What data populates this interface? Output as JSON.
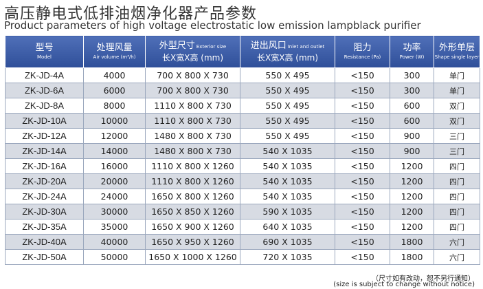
{
  "title": {
    "cn": "高压静电式低排油烟净化器产品参数",
    "en": "Product parameters of high voltage electrostatic low emission lampblack purifier"
  },
  "table": {
    "headers": [
      {
        "cn": "型号",
        "en": "Model"
      },
      {
        "cn": "处理风量",
        "en": "Air volume (m³/h)"
      },
      {
        "cn": "外型尺寸",
        "en": "Exterior size",
        "line2": "长X宽X高 (mm)"
      },
      {
        "cn": "进出风口",
        "en": "Inlet and outlet",
        "line2": "长X宽X高 (mm)"
      },
      {
        "cn": "阻力",
        "en": "Resistance (Pa)"
      },
      {
        "cn": "功率",
        "en": "Power (W)"
      },
      {
        "cn": "外形单层",
        "en": "Shape single layer"
      }
    ],
    "rows": [
      {
        "model": "ZK-JD-4A",
        "air_volume": "4000",
        "exterior": "700 X 800 X 730",
        "inlet": "550 X 495",
        "resistance": "<150",
        "power": "300",
        "shape": "单门"
      },
      {
        "model": "ZK-JD-6A",
        "air_volume": "6000",
        "exterior": "700 X 800 X 730",
        "inlet": "550 X 495",
        "resistance": "<150",
        "power": "300",
        "shape": "单门"
      },
      {
        "model": "ZK-JD-8A",
        "air_volume": "8000",
        "exterior": "1110 X 800 X 730",
        "inlet": "550 X 495",
        "resistance": "<150",
        "power": "600",
        "shape": "双门"
      },
      {
        "model": "ZK-JD-10A",
        "air_volume": "10000",
        "exterior": "1110 X 800 X 730",
        "inlet": "550 X 495",
        "resistance": "<150",
        "power": "600",
        "shape": "双门"
      },
      {
        "model": "ZK-JD-12A",
        "air_volume": "12000",
        "exterior": "1480 X 800 X 730",
        "inlet": "550 X 495",
        "resistance": "<150",
        "power": "900",
        "shape": "三门"
      },
      {
        "model": "ZK-JD-14A",
        "air_volume": "14000",
        "exterior": "1480 X 800 X 730",
        "inlet": "540 X 1035",
        "resistance": "<150",
        "power": "900",
        "shape": "三门"
      },
      {
        "model": "ZK-JD-16A",
        "air_volume": "16000",
        "exterior": "1110 X 800 X 1260",
        "inlet": "540 X 1035",
        "resistance": "<150",
        "power": "1200",
        "shape": "四门"
      },
      {
        "model": "ZK-JD-20A",
        "air_volume": "20000",
        "exterior": "1110 X 800 X 1260",
        "inlet": "540 X 1035",
        "resistance": "<150",
        "power": "1200",
        "shape": "四门"
      },
      {
        "model": "ZK-JD-24A",
        "air_volume": "24000",
        "exterior": "1650 X 800 X 1260",
        "inlet": "540 X 1035",
        "resistance": "<150",
        "power": "1200",
        "shape": "四门"
      },
      {
        "model": "ZK-JD-30A",
        "air_volume": "30000",
        "exterior": "1650 X 850 X 1260",
        "inlet": "590 X 1035",
        "resistance": "<150",
        "power": "1200",
        "shape": "四门"
      },
      {
        "model": "ZK-JD-35A",
        "air_volume": "35000",
        "exterior": "1650 X 900 X 1260",
        "inlet": "640 X 1035",
        "resistance": "<150",
        "power": "1200",
        "shape": "四门"
      },
      {
        "model": "ZK-JD-40A",
        "air_volume": "40000",
        "exterior": "1650 X 950 X 1260",
        "inlet": "690 X 1035",
        "resistance": "<150",
        "power": "1800",
        "shape": "六门"
      },
      {
        "model": "ZK-JD-50A",
        "air_volume": "50000",
        "exterior": "1650 X 1000 X 1260",
        "inlet": "720 X 1035",
        "resistance": "<150",
        "power": "1800",
        "shape": "六门"
      }
    ]
  },
  "note": {
    "cn": "（尺寸如有改动，恕不另行通知）",
    "en": "(size is subject to change without notice)"
  },
  "colors": {
    "header_bg": "#3a5aa6",
    "row_alt_bg": "#d7dbe3",
    "row_bg": "#ffffff"
  }
}
